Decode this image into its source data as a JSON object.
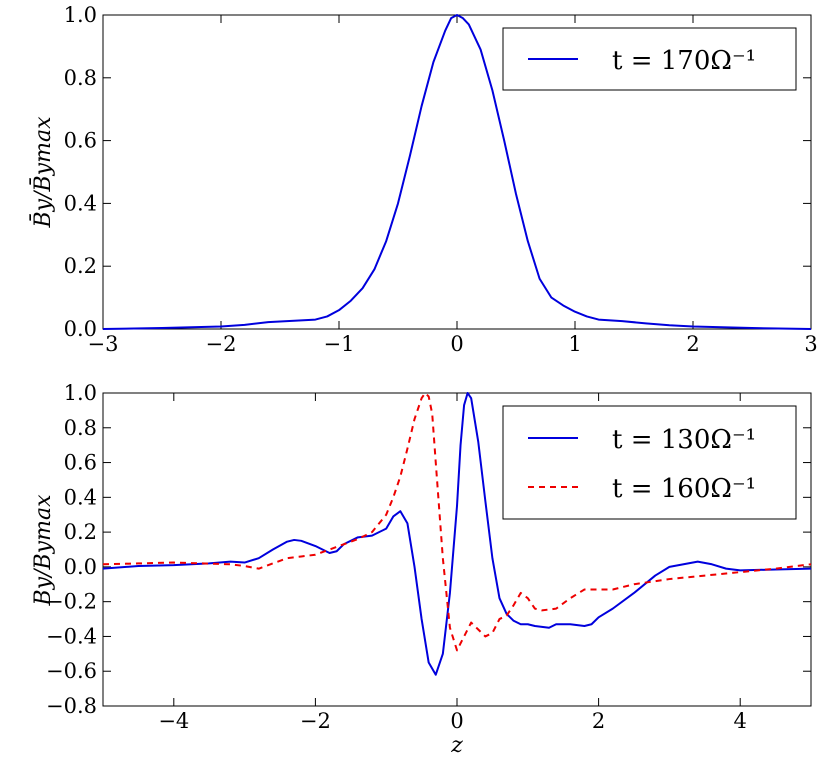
{
  "chart_data": [
    {
      "type": "line",
      "title": "",
      "xlabel": "",
      "ylabel": "B̄y/B̄ymax",
      "xlim": [
        -3,
        3
      ],
      "ylim": [
        0,
        1
      ],
      "xticks": [
        "−3",
        "−2",
        "−1",
        "0",
        "1",
        "2",
        "3"
      ],
      "yticks": [
        "0.0",
        "0.2",
        "0.4",
        "0.6",
        "0.8",
        "1.0"
      ],
      "legend_position": "top-right",
      "series": [
        {
          "name": "t = 170Ω⁻¹",
          "color": "#0000dd",
          "style": "solid",
          "x": [
            -3,
            -2.5,
            -2,
            -1.8,
            -1.6,
            -1.4,
            -1.2,
            -1.1,
            -1.0,
            -0.9,
            -0.8,
            -0.7,
            -0.6,
            -0.5,
            -0.4,
            -0.3,
            -0.2,
            -0.1,
            -0.05,
            0,
            0.05,
            0.1,
            0.2,
            0.3,
            0.4,
            0.5,
            0.6,
            0.7,
            0.8,
            0.9,
            1.0,
            1.1,
            1.2,
            1.4,
            1.6,
            1.8,
            2.0,
            2.5,
            3.0
          ],
          "y": [
            0.0,
            0.003,
            0.008,
            0.013,
            0.022,
            0.026,
            0.03,
            0.04,
            0.06,
            0.09,
            0.13,
            0.19,
            0.28,
            0.4,
            0.55,
            0.71,
            0.85,
            0.95,
            0.99,
            1.0,
            0.99,
            0.97,
            0.89,
            0.76,
            0.6,
            0.43,
            0.28,
            0.16,
            0.1,
            0.075,
            0.055,
            0.04,
            0.03,
            0.025,
            0.018,
            0.012,
            0.008,
            0.003,
            0.0
          ]
        }
      ]
    },
    {
      "type": "line",
      "title": "",
      "xlabel": "z",
      "ylabel": "By/Bymax",
      "xlim": [
        -5,
        5
      ],
      "ylim": [
        -0.8,
        1
      ],
      "xticks": [
        "−4",
        "−2",
        "0",
        "2",
        "4"
      ],
      "yticks": [
        "−0.8",
        "−0.6",
        "−0.4",
        "−0.2",
        "0.0",
        "0.2",
        "0.4",
        "0.6",
        "0.8",
        "1.0"
      ],
      "legend_position": "top-right",
      "series": [
        {
          "name": "t = 130Ω⁻¹",
          "color": "#0000dd",
          "style": "solid",
          "x": [
            -5,
            -4.5,
            -4,
            -3.5,
            -3.2,
            -3,
            -2.8,
            -2.6,
            -2.4,
            -2.3,
            -2.2,
            -2.0,
            -1.8,
            -1.7,
            -1.6,
            -1.4,
            -1.2,
            -1.0,
            -0.9,
            -0.8,
            -0.7,
            -0.6,
            -0.5,
            -0.4,
            -0.3,
            -0.2,
            -0.1,
            0.0,
            0.05,
            0.1,
            0.15,
            0.2,
            0.3,
            0.4,
            0.5,
            0.6,
            0.7,
            0.8,
            0.9,
            1.0,
            1.1,
            1.2,
            1.3,
            1.4,
            1.6,
            1.8,
            1.9,
            2.0,
            2.2,
            2.5,
            2.8,
            3.0,
            3.2,
            3.4,
            3.6,
            3.8,
            4.0,
            4.5,
            5.0
          ],
          "y": [
            -0.01,
            0.005,
            0.01,
            0.02,
            0.03,
            0.025,
            0.05,
            0.1,
            0.145,
            0.155,
            0.15,
            0.12,
            0.08,
            0.09,
            0.13,
            0.17,
            0.18,
            0.22,
            0.29,
            0.32,
            0.25,
            0.0,
            -0.3,
            -0.55,
            -0.62,
            -0.5,
            -0.15,
            0.35,
            0.7,
            0.93,
            1.0,
            0.97,
            0.72,
            0.38,
            0.05,
            -0.18,
            -0.27,
            -0.31,
            -0.33,
            -0.33,
            -0.34,
            -0.345,
            -0.35,
            -0.33,
            -0.33,
            -0.34,
            -0.33,
            -0.29,
            -0.24,
            -0.15,
            -0.05,
            0.0,
            0.015,
            0.03,
            0.015,
            -0.01,
            -0.02,
            -0.015,
            -0.01
          ]
        },
        {
          "name": "t = 160Ω⁻¹",
          "color": "#ee0000",
          "style": "dashed",
          "x": [
            -5,
            -4.5,
            -4,
            -3.6,
            -3.2,
            -3.0,
            -2.8,
            -2.6,
            -2.4,
            -2.2,
            -2.0,
            -1.8,
            -1.6,
            -1.4,
            -1.2,
            -1.0,
            -0.9,
            -0.8,
            -0.7,
            -0.6,
            -0.5,
            -0.45,
            -0.4,
            -0.35,
            -0.3,
            -0.2,
            -0.1,
            0.0,
            0.1,
            0.2,
            0.3,
            0.4,
            0.5,
            0.6,
            0.7,
            0.8,
            0.9,
            1.0,
            1.1,
            1.2,
            1.4,
            1.6,
            1.8,
            2.0,
            2.2,
            2.5,
            3.0,
            3.5,
            4.0,
            4.5,
            5.0
          ],
          "y": [
            0.015,
            0.02,
            0.025,
            0.02,
            0.015,
            0.005,
            -0.01,
            0.02,
            0.05,
            0.06,
            0.07,
            0.1,
            0.13,
            0.16,
            0.2,
            0.3,
            0.4,
            0.52,
            0.68,
            0.85,
            0.97,
            1.0,
            0.98,
            0.88,
            0.6,
            0.05,
            -0.35,
            -0.48,
            -0.4,
            -0.32,
            -0.36,
            -0.4,
            -0.38,
            -0.3,
            -0.28,
            -0.22,
            -0.15,
            -0.18,
            -0.24,
            -0.25,
            -0.24,
            -0.18,
            -0.13,
            -0.13,
            -0.13,
            -0.1,
            -0.07,
            -0.05,
            -0.03,
            -0.01,
            0.015
          ]
        }
      ]
    }
  ]
}
